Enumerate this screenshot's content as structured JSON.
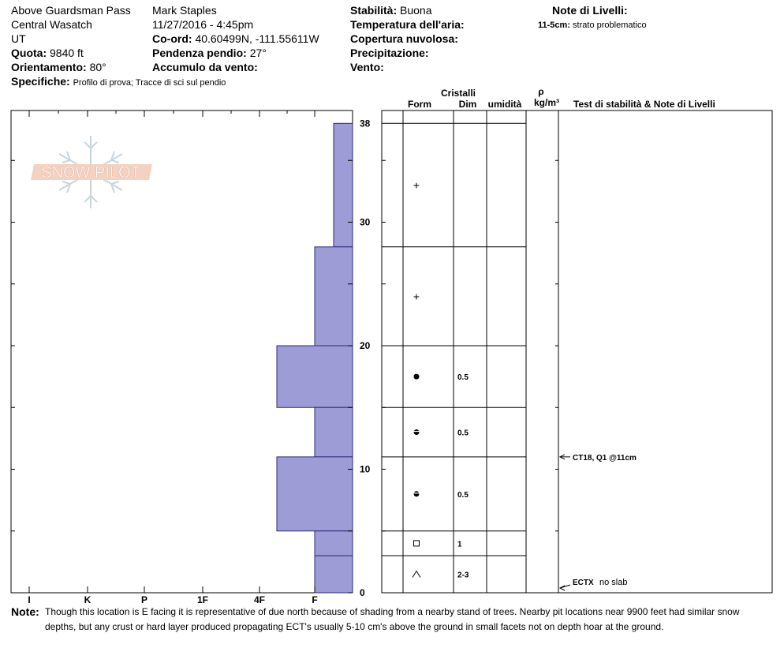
{
  "header": {
    "location": "Above Guardsman Pass",
    "range": "Central Wasatch",
    "state": "UT",
    "elevation_label": "Quota:",
    "elevation_value": "9840 ft",
    "aspect_label": "Orientamento:",
    "aspect_value": "80°",
    "specifics_label": "Specifiche:",
    "specifics_value": "Profilo di prova;  Tracce di sci sul pendio",
    "observer": "Mark Staples",
    "datetime": "11/27/2016 - 4:45pm",
    "coord_label": "Co-ord:",
    "coord_value": "40.60499N, -111.55611W",
    "slope_label": "Pendenza pendio:",
    "slope_value": "27°",
    "wind_loading_label": "Accumulo da vento:",
    "stability_label": "Stabilità:",
    "stability_value": "Buona",
    "air_temp_label": "Temperatura dell'aria:",
    "cloud_label": "Copertura nuvolosa:",
    "precip_label": "Precipitazione:",
    "wind_label": "Vento:",
    "layer_notes_label": "Note di Livelli:",
    "layer_note_depth": "11-5cm:",
    "layer_note_text": "strato problematico"
  },
  "columns": {
    "crystals": "Cristalli",
    "form": "Form",
    "size": "Dim",
    "moisture": "umidità",
    "rho": "ρ",
    "density_unit": "kg/m³",
    "stability_tests": "Test di stabilità & Note di Livelli"
  },
  "logo_text": "SNOW PILOT",
  "notes": {
    "label": "Note:",
    "text": "Though this location is E facing it is representative of due north because of shading from a nearby stand of trees. Nearby pit locations near 9900 feet had similar snow depths, but any crust or hard layer produced propagating ECT's usually 5-10 cm's above the ground in small facets not on depth hoar at the ground."
  },
  "chart_data": {
    "type": "bar",
    "orientation": "horizontal",
    "y_axis": {
      "label": "",
      "range": [
        0,
        39
      ],
      "tick_labels": [
        "38",
        "30",
        "20",
        "10",
        "0"
      ],
      "tick_values": [
        38,
        30,
        20,
        10,
        0
      ],
      "minor_every": 5
    },
    "x_axis": {
      "label": "",
      "categories": [
        "I",
        "K",
        "P",
        "1F",
        "4F",
        "F"
      ],
      "direction": "hardness decreases to the right"
    },
    "layers": [
      {
        "top": 38,
        "bottom": 28,
        "hardness": "F-",
        "form": "+",
        "size": ""
      },
      {
        "top": 28,
        "bottom": 20,
        "hardness": "F",
        "form": "+",
        "size": ""
      },
      {
        "top": 20,
        "bottom": 15,
        "hardness": "4F-",
        "form": "●",
        "size": "0.5"
      },
      {
        "top": 15,
        "bottom": 11,
        "hardness": "F",
        "form": "rounding facets",
        "size": "0.5"
      },
      {
        "top": 11,
        "bottom": 5,
        "hardness": "4F-",
        "form": "rounding facets",
        "size": "0.5"
      },
      {
        "top": 5,
        "bottom": 3,
        "hardness": "F",
        "form": "□",
        "size": "1"
      },
      {
        "top": 3,
        "bottom": 0,
        "hardness": "F",
        "form": "∧",
        "size": "2-3"
      }
    ],
    "stability_tests": [
      {
        "depth": 11,
        "result": "CT18, Q1 @11cm",
        "note": ""
      },
      {
        "depth": 0,
        "result": "ECTX",
        "note": "no slab"
      }
    ],
    "colors": {
      "bar_fill": "#9e9cd6",
      "bar_stroke": "#2a2a7a"
    }
  }
}
